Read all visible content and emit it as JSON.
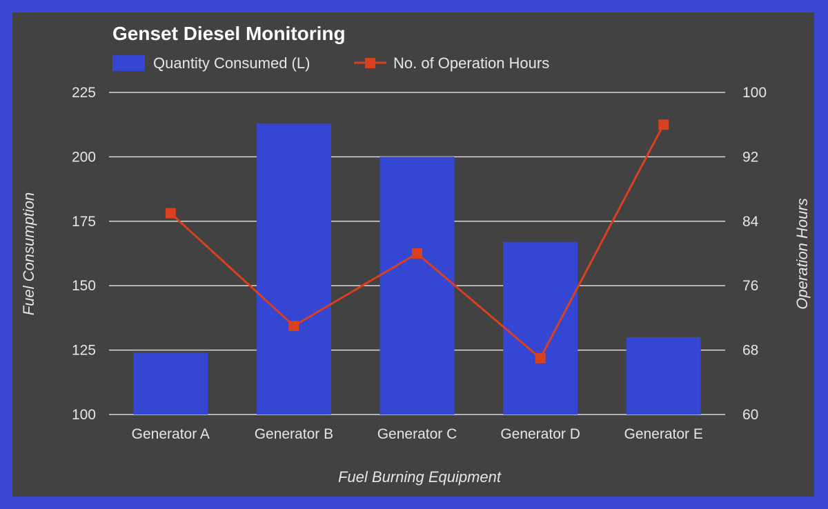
{
  "colors": {
    "border": "#3a49d3",
    "background": "#424242",
    "bar": "#3446d2",
    "line": "#d9401e",
    "grid": "#d9d9d9",
    "text": "#e6e6e6"
  },
  "chart_data": {
    "type": "bar",
    "title": "Genset Diesel Monitoring",
    "xlabel": "Fuel Burning Equipment",
    "ylabel": "Fuel Consumption",
    "y2label": "Operation Hours",
    "categories": [
      "Generator A",
      "Generator B",
      "Generator C",
      "Generator D",
      "Generator E"
    ],
    "series": [
      {
        "name": "Quantity Consumed (L)",
        "type": "bar",
        "axis": "left",
        "values": [
          124,
          213,
          200,
          167,
          130
        ]
      },
      {
        "name": "No. of Operation Hours",
        "type": "line",
        "axis": "right",
        "marker": "square",
        "values": [
          85,
          71,
          80,
          67,
          96
        ]
      }
    ],
    "ylim": [
      100,
      225
    ],
    "yticks": [
      100,
      125,
      150,
      175,
      200,
      225
    ],
    "y2lim": [
      60,
      100
    ],
    "y2ticks": [
      60,
      68,
      76,
      84,
      92,
      100
    ],
    "legend_position": "top-left",
    "grid": true
  }
}
